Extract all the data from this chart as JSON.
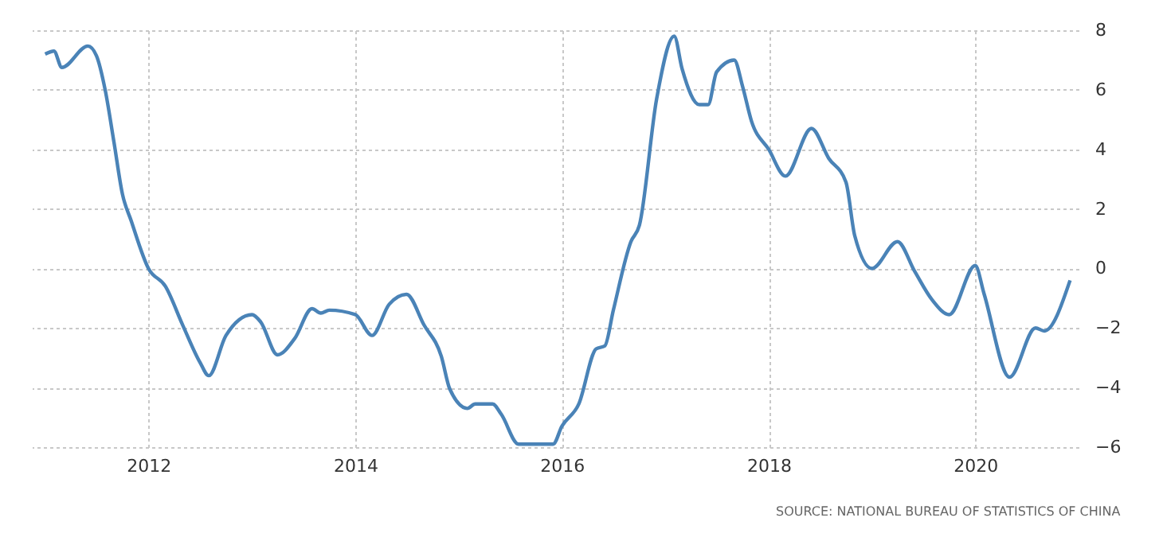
{
  "chart_data": {
    "type": "line",
    "annotations": [
      "SOURCE: NATIONAL BUREAU OF STATISTICS OF CHINA"
    ],
    "x": [
      "2011-01",
      "2011-02",
      "2011-03",
      "2011-06",
      "2011-07",
      "2011-08",
      "2011-09",
      "2011-10",
      "2011-11",
      "2012-01",
      "2012-03",
      "2012-05",
      "2012-07",
      "2012-08",
      "2012-10",
      "2013-01",
      "2013-02",
      "2013-04",
      "2013-06",
      "2013-08",
      "2013-09",
      "2013-10",
      "2014-01",
      "2014-03",
      "2014-05",
      "2014-07",
      "2014-09",
      "2014-11",
      "2014-12",
      "2015-02",
      "2015-03",
      "2015-05",
      "2015-06",
      "2015-08",
      "2015-12",
      "2016-01",
      "2016-03",
      "2016-05",
      "2016-06",
      "2016-07",
      "2016-09",
      "2016-10",
      "2016-12",
      "2017-02",
      "2017-03",
      "2017-05",
      "2017-06",
      "2017-07",
      "2017-09",
      "2017-10",
      "2017-11",
      "2018-01",
      "2018-03",
      "2018-06",
      "2018-08",
      "2018-10",
      "2018-11",
      "2019-01",
      "2019-04",
      "2019-06",
      "2019-08",
      "2019-10",
      "2020-01",
      "2020-02",
      "2020-05",
      "2020-08",
      "2020-09",
      "2020-12"
    ],
    "series": [
      {
        "color": "#4a83b7",
        "values": [
          7.2,
          7.3,
          6.75,
          7.47,
          7.15,
          6.0,
          4.25,
          2.5,
          1.6,
          0.0,
          -0.6,
          -1.9,
          -3.15,
          -3.6,
          -2.25,
          -1.55,
          -1.8,
          -2.9,
          -2.35,
          -1.35,
          -1.5,
          -1.4,
          -1.55,
          -2.25,
          -1.2,
          -0.87,
          -1.9,
          -2.95,
          -4.05,
          -4.7,
          -4.55,
          -4.55,
          -4.9,
          -5.9,
          -5.9,
          -5.3,
          -4.55,
          -2.7,
          -2.6,
          -1.4,
          0.9,
          1.45,
          5.7,
          7.8,
          6.7,
          5.5,
          5.5,
          6.6,
          7.0,
          6.1,
          4.95,
          4.0,
          3.1,
          4.7,
          3.7,
          2.9,
          1.1,
          0.0,
          0.9,
          -0.1,
          -1.05,
          -1.55,
          0.1,
          -0.85,
          -3.65,
          -2.0,
          -2.1,
          -0.4
        ]
      }
    ],
    "xlim": [
      "2010-11-15",
      "2020-12-31"
    ],
    "xticks": [
      "2012",
      "2014",
      "2016",
      "2018",
      "2020"
    ],
    "ylim": [
      -6,
      8
    ],
    "yticks": [
      -6,
      -4,
      -2,
      0,
      2,
      4,
      6,
      8
    ],
    "grid": true,
    "legend": false,
    "marker": "none",
    "line_style": "solid"
  }
}
